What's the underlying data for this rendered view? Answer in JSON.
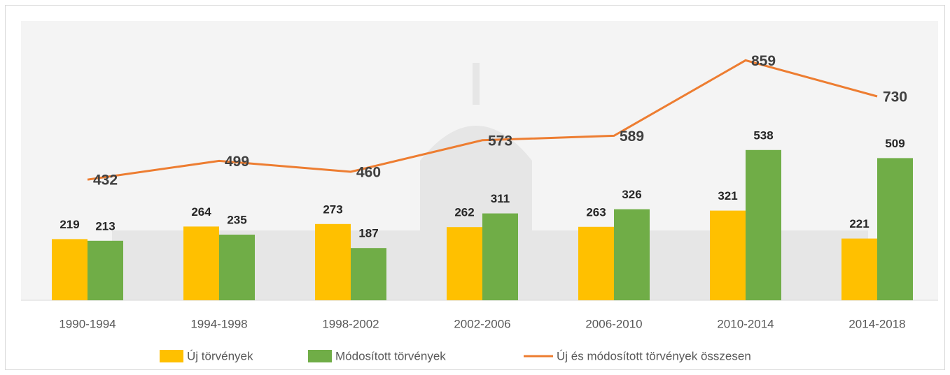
{
  "chart_data": {
    "type": "bar",
    "categories": [
      "1990-1994",
      "1994-1998",
      "1998-2002",
      "2002-2006",
      "2006-2010",
      "2010-2014",
      "2014-2018"
    ],
    "series": [
      {
        "name": "Új törvények",
        "color": "#ffc000",
        "values": [
          219,
          264,
          273,
          262,
          263,
          321,
          221
        ]
      },
      {
        "name": "Módosított törvények",
        "color": "#70ad47",
        "values": [
          213,
          235,
          187,
          311,
          326,
          538,
          509
        ]
      },
      {
        "name": "Új és módosított törvények összesen",
        "color": "#ed7d31",
        "type": "line",
        "values": [
          432,
          499,
          460,
          573,
          589,
          859,
          730
        ]
      }
    ],
    "legend": "bottom"
  }
}
